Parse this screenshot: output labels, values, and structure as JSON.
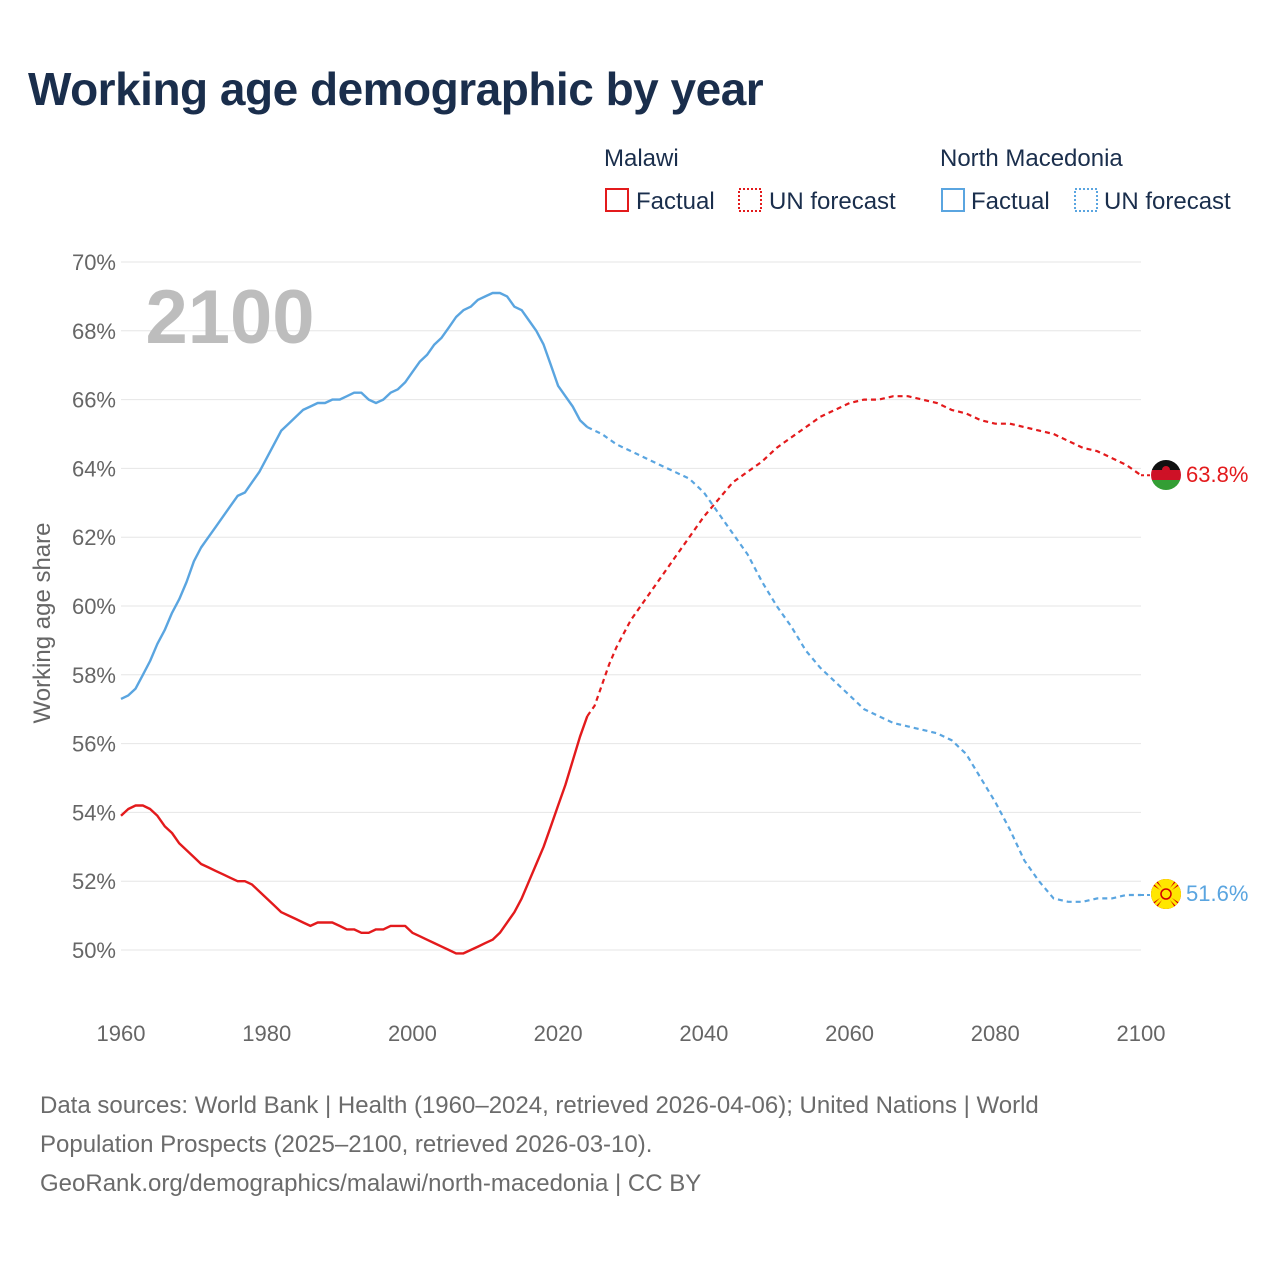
{
  "title": "Working age demographic by year",
  "footer": {
    "line1": "Data sources: World Bank | Health (1960–2024, retrieved 2026-04-06); United Nations | World",
    "line2": "Population Prospects (2025–2100, retrieved 2026-03-10).",
    "line3": "GeoRank.org/demographics/malawi/north-macedonia | CC BY"
  },
  "legend": {
    "groups": [
      {
        "country": "Malawi",
        "color": "#e31a1c",
        "factual_label": "Factual",
        "forecast_label": "UN forecast"
      },
      {
        "country": "North Macedonia",
        "color": "#5aa5e0",
        "factual_label": "Factual",
        "forecast_label": "UN forecast"
      }
    ]
  },
  "chart_data": {
    "type": "line",
    "title": "Working age demographic by year",
    "xlabel": "",
    "ylabel": "Working age share",
    "year_watermark": "2100",
    "xlim": [
      1960,
      2100
    ],
    "ylim": [
      49,
      70
    ],
    "x_ticks": [
      "1960",
      "1980",
      "2000",
      "2020",
      "2040",
      "2060",
      "2080",
      "2100"
    ],
    "y_ticks": [
      {
        "value": 70,
        "label": "70%"
      },
      {
        "value": 68,
        "label": "68%"
      },
      {
        "value": 66,
        "label": "66%"
      },
      {
        "value": 64,
        "label": "64%"
      },
      {
        "value": 62,
        "label": "62%"
      },
      {
        "value": 60,
        "label": "60%"
      },
      {
        "value": 58,
        "label": "58%"
      },
      {
        "value": 56,
        "label": "56%"
      },
      {
        "value": 54,
        "label": "54%"
      },
      {
        "value": 52,
        "label": "52%"
      },
      {
        "value": 50,
        "label": "50%"
      }
    ],
    "grid": true,
    "legend_position": "top-right",
    "factual_end_year": 2024,
    "series": [
      {
        "name": "Malawi",
        "color": "#e31a1c",
        "end_label": "63.8%",
        "flag": "malawi-flag",
        "points": [
          [
            1960,
            53.9
          ],
          [
            1961,
            54.1
          ],
          [
            1962,
            54.2
          ],
          [
            1963,
            54.2
          ],
          [
            1964,
            54.1
          ],
          [
            1965,
            53.9
          ],
          [
            1966,
            53.6
          ],
          [
            1967,
            53.4
          ],
          [
            1968,
            53.1
          ],
          [
            1969,
            52.9
          ],
          [
            1970,
            52.7
          ],
          [
            1971,
            52.5
          ],
          [
            1972,
            52.4
          ],
          [
            1973,
            52.3
          ],
          [
            1974,
            52.2
          ],
          [
            1975,
            52.1
          ],
          [
            1976,
            52.0
          ],
          [
            1977,
            52.0
          ],
          [
            1978,
            51.9
          ],
          [
            1979,
            51.7
          ],
          [
            1980,
            51.5
          ],
          [
            1981,
            51.3
          ],
          [
            1982,
            51.1
          ],
          [
            1983,
            51.0
          ],
          [
            1984,
            50.9
          ],
          [
            1985,
            50.8
          ],
          [
            1986,
            50.7
          ],
          [
            1987,
            50.8
          ],
          [
            1988,
            50.8
          ],
          [
            1989,
            50.8
          ],
          [
            1990,
            50.7
          ],
          [
            1991,
            50.6
          ],
          [
            1992,
            50.6
          ],
          [
            1993,
            50.5
          ],
          [
            1994,
            50.5
          ],
          [
            1995,
            50.6
          ],
          [
            1996,
            50.6
          ],
          [
            1997,
            50.7
          ],
          [
            1998,
            50.7
          ],
          [
            1999,
            50.7
          ],
          [
            2000,
            50.5
          ],
          [
            2001,
            50.4
          ],
          [
            2002,
            50.3
          ],
          [
            2003,
            50.2
          ],
          [
            2004,
            50.1
          ],
          [
            2005,
            50.0
          ],
          [
            2006,
            49.9
          ],
          [
            2007,
            49.9
          ],
          [
            2008,
            50.0
          ],
          [
            2009,
            50.1
          ],
          [
            2010,
            50.2
          ],
          [
            2011,
            50.3
          ],
          [
            2012,
            50.5
          ],
          [
            2013,
            50.8
          ],
          [
            2014,
            51.1
          ],
          [
            2015,
            51.5
          ],
          [
            2016,
            52.0
          ],
          [
            2017,
            52.5
          ],
          [
            2018,
            53.0
          ],
          [
            2019,
            53.6
          ],
          [
            2020,
            54.2
          ],
          [
            2021,
            54.8
          ],
          [
            2022,
            55.5
          ],
          [
            2023,
            56.2
          ],
          [
            2024,
            56.8
          ],
          [
            2025,
            57.1
          ],
          [
            2026,
            57.7
          ],
          [
            2027,
            58.3
          ],
          [
            2028,
            58.8
          ],
          [
            2029,
            59.2
          ],
          [
            2030,
            59.6
          ],
          [
            2032,
            60.2
          ],
          [
            2034,
            60.8
          ],
          [
            2036,
            61.4
          ],
          [
            2038,
            62.0
          ],
          [
            2040,
            62.6
          ],
          [
            2042,
            63.1
          ],
          [
            2044,
            63.6
          ],
          [
            2046,
            63.9
          ],
          [
            2048,
            64.2
          ],
          [
            2050,
            64.6
          ],
          [
            2052,
            64.9
          ],
          [
            2054,
            65.2
          ],
          [
            2056,
            65.5
          ],
          [
            2058,
            65.7
          ],
          [
            2060,
            65.9
          ],
          [
            2062,
            66.0
          ],
          [
            2064,
            66.0
          ],
          [
            2066,
            66.1
          ],
          [
            2068,
            66.1
          ],
          [
            2070,
            66.0
          ],
          [
            2072,
            65.9
          ],
          [
            2074,
            65.7
          ],
          [
            2076,
            65.6
          ],
          [
            2078,
            65.4
          ],
          [
            2080,
            65.3
          ],
          [
            2082,
            65.3
          ],
          [
            2084,
            65.2
          ],
          [
            2086,
            65.1
          ],
          [
            2088,
            65.0
          ],
          [
            2090,
            64.8
          ],
          [
            2092,
            64.6
          ],
          [
            2094,
            64.5
          ],
          [
            2096,
            64.3
          ],
          [
            2098,
            64.1
          ],
          [
            2100,
            63.8
          ]
        ]
      },
      {
        "name": "North Macedonia",
        "color": "#5aa5e0",
        "end_label": "51.6%",
        "flag": "north-macedonia-flag",
        "points": [
          [
            1960,
            57.3
          ],
          [
            1961,
            57.4
          ],
          [
            1962,
            57.6
          ],
          [
            1963,
            58.0
          ],
          [
            1964,
            58.4
          ],
          [
            1965,
            58.9
          ],
          [
            1966,
            59.3
          ],
          [
            1967,
            59.8
          ],
          [
            1968,
            60.2
          ],
          [
            1969,
            60.7
          ],
          [
            1970,
            61.3
          ],
          [
            1971,
            61.7
          ],
          [
            1972,
            62.0
          ],
          [
            1973,
            62.3
          ],
          [
            1974,
            62.6
          ],
          [
            1975,
            62.9
          ],
          [
            1976,
            63.2
          ],
          [
            1977,
            63.3
          ],
          [
            1978,
            63.6
          ],
          [
            1979,
            63.9
          ],
          [
            1980,
            64.3
          ],
          [
            1981,
            64.7
          ],
          [
            1982,
            65.1
          ],
          [
            1983,
            65.3
          ],
          [
            1984,
            65.5
          ],
          [
            1985,
            65.7
          ],
          [
            1986,
            65.8
          ],
          [
            1987,
            65.9
          ],
          [
            1988,
            65.9
          ],
          [
            1989,
            66.0
          ],
          [
            1990,
            66.0
          ],
          [
            1991,
            66.1
          ],
          [
            1992,
            66.2
          ],
          [
            1993,
            66.2
          ],
          [
            1994,
            66.0
          ],
          [
            1995,
            65.9
          ],
          [
            1996,
            66.0
          ],
          [
            1997,
            66.2
          ],
          [
            1998,
            66.3
          ],
          [
            1999,
            66.5
          ],
          [
            2000,
            66.8
          ],
          [
            2001,
            67.1
          ],
          [
            2002,
            67.3
          ],
          [
            2003,
            67.6
          ],
          [
            2004,
            67.8
          ],
          [
            2005,
            68.1
          ],
          [
            2006,
            68.4
          ],
          [
            2007,
            68.6
          ],
          [
            2008,
            68.7
          ],
          [
            2009,
            68.9
          ],
          [
            2010,
            69.0
          ],
          [
            2011,
            69.1
          ],
          [
            2012,
            69.1
          ],
          [
            2013,
            69.0
          ],
          [
            2014,
            68.7
          ],
          [
            2015,
            68.6
          ],
          [
            2016,
            68.3
          ],
          [
            2017,
            68.0
          ],
          [
            2018,
            67.6
          ],
          [
            2019,
            67.0
          ],
          [
            2020,
            66.4
          ],
          [
            2021,
            66.1
          ],
          [
            2022,
            65.8
          ],
          [
            2023,
            65.4
          ],
          [
            2024,
            65.2
          ],
          [
            2025,
            65.1
          ],
          [
            2026,
            65.0
          ],
          [
            2028,
            64.7
          ],
          [
            2030,
            64.5
          ],
          [
            2032,
            64.3
          ],
          [
            2034,
            64.1
          ],
          [
            2036,
            63.9
          ],
          [
            2038,
            63.7
          ],
          [
            2040,
            63.3
          ],
          [
            2042,
            62.7
          ],
          [
            2044,
            62.1
          ],
          [
            2046,
            61.5
          ],
          [
            2048,
            60.7
          ],
          [
            2050,
            60.0
          ],
          [
            2052,
            59.4
          ],
          [
            2054,
            58.7
          ],
          [
            2056,
            58.2
          ],
          [
            2058,
            57.8
          ],
          [
            2060,
            57.4
          ],
          [
            2062,
            57.0
          ],
          [
            2064,
            56.8
          ],
          [
            2066,
            56.6
          ],
          [
            2068,
            56.5
          ],
          [
            2070,
            56.4
          ],
          [
            2072,
            56.3
          ],
          [
            2074,
            56.1
          ],
          [
            2076,
            55.7
          ],
          [
            2078,
            55.0
          ],
          [
            2080,
            54.3
          ],
          [
            2082,
            53.5
          ],
          [
            2084,
            52.6
          ],
          [
            2086,
            52.0
          ],
          [
            2088,
            51.5
          ],
          [
            2090,
            51.4
          ],
          [
            2092,
            51.4
          ],
          [
            2094,
            51.5
          ],
          [
            2096,
            51.5
          ],
          [
            2098,
            51.6
          ],
          [
            2100,
            51.6
          ]
        ]
      }
    ]
  }
}
